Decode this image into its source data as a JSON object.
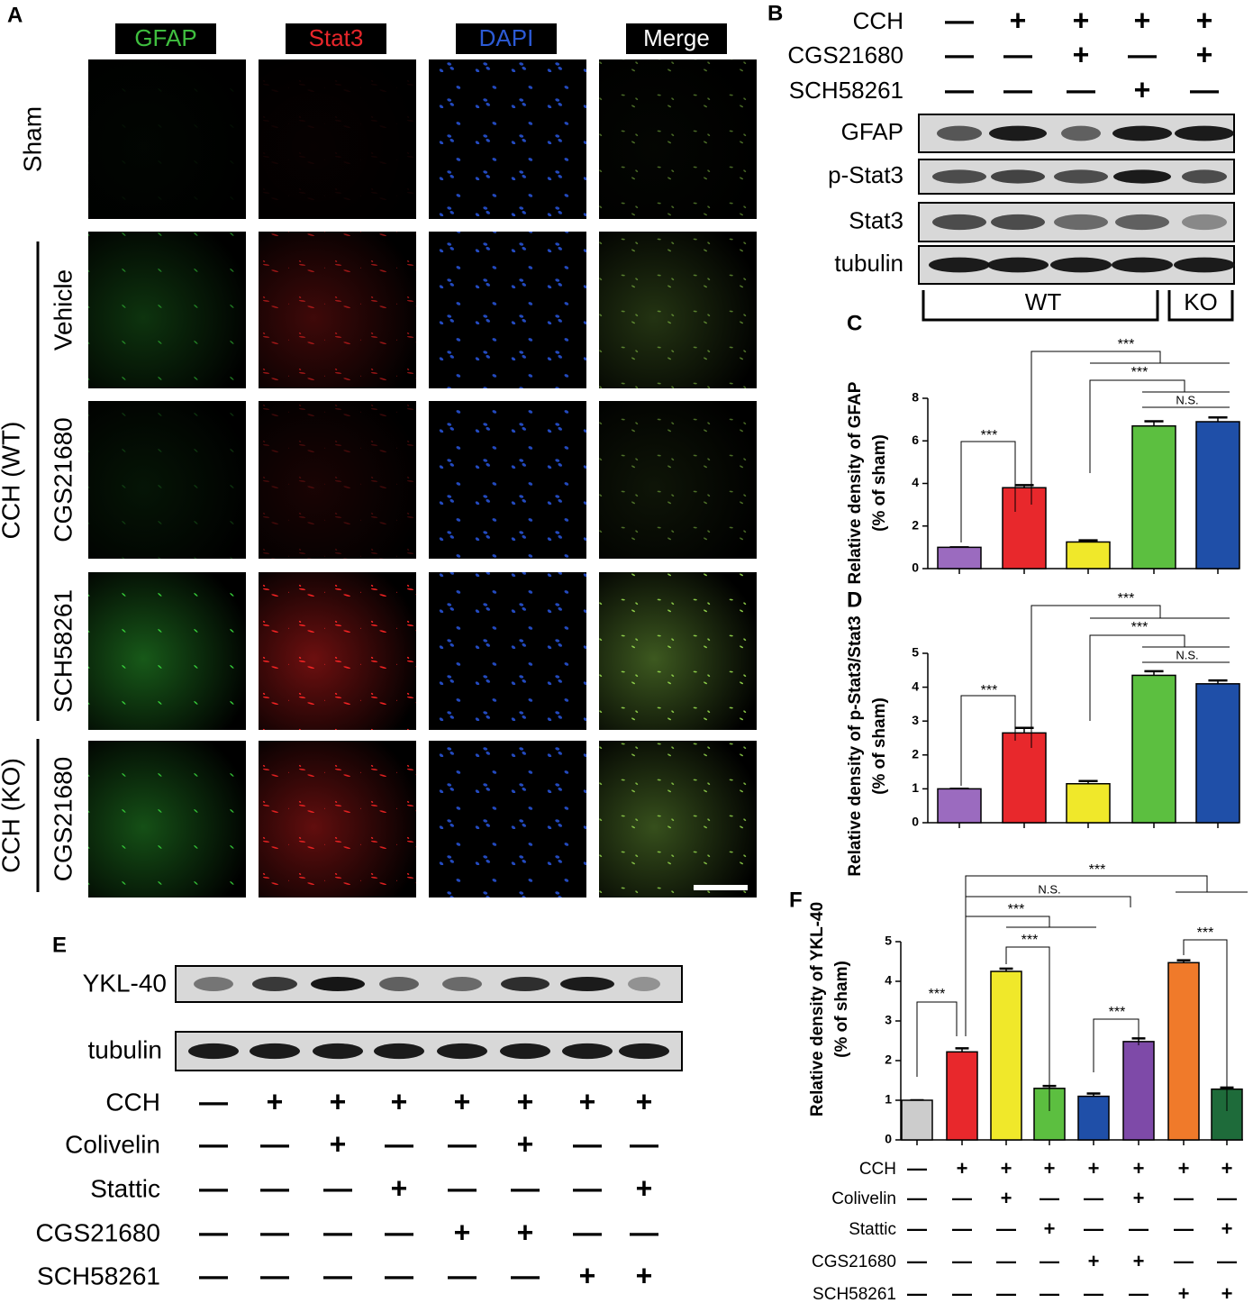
{
  "panel_a": {
    "label": "A",
    "channels": [
      "GFAP",
      "Stat3",
      "DAPI",
      "Merge"
    ],
    "rows": [
      "Sham",
      "Vehicle",
      "CGS21680",
      "SCH58261",
      "CGS21680"
    ],
    "groups": [
      "CCH (WT)",
      "CCH (KO)"
    ]
  },
  "panel_b": {
    "label": "B",
    "conditions": [
      {
        "name": "CCH",
        "signs": [
          "—",
          "+",
          "+",
          "+",
          "+"
        ]
      },
      {
        "name": "CGS21680",
        "signs": [
          "—",
          "—",
          "+",
          "—",
          "+"
        ]
      },
      {
        "name": "SCH58261",
        "signs": [
          "—",
          "—",
          "—",
          "+",
          "—"
        ]
      }
    ],
    "blots": [
      "GFAP",
      "p-Stat3",
      "Stat3",
      "tubulin"
    ],
    "genotypes": [
      "WT",
      "KO"
    ]
  },
  "panel_e": {
    "label": "E",
    "blots": [
      "YKL-40",
      "tubulin"
    ],
    "conditions": [
      {
        "name": "CCH",
        "signs": [
          "—",
          "+",
          "+",
          "+",
          "+",
          "+",
          "+",
          "+"
        ]
      },
      {
        "name": "Colivelin",
        "signs": [
          "—",
          "—",
          "+",
          "—",
          "—",
          "+",
          "—",
          "—"
        ]
      },
      {
        "name": "Stattic",
        "signs": [
          "—",
          "—",
          "—",
          "+",
          "—",
          "—",
          "—",
          "+"
        ]
      },
      {
        "name": "CGS21680",
        "signs": [
          "—",
          "—",
          "—",
          "—",
          "+",
          "+",
          "—",
          "—"
        ]
      },
      {
        "name": "SCH58261",
        "signs": [
          "—",
          "—",
          "—",
          "—",
          "—",
          "—",
          "+",
          "+"
        ]
      }
    ]
  },
  "chart_data": [
    {
      "type": "bar",
      "panel_label": "C",
      "ylabel": [
        "Relative density of GFAP",
        "(% of sham)"
      ],
      "categories": [
        null,
        null,
        null,
        null,
        null
      ],
      "values": [
        1.0,
        3.8,
        1.25,
        6.7,
        6.9
      ],
      "errors": [
        0,
        0.12,
        0.08,
        0.22,
        0.2
      ],
      "colors": [
        "#9b6bbf",
        "#e8282c",
        "#f0e82a",
        "#5cbf40",
        "#1f4fa8"
      ],
      "ylim": [
        0,
        8
      ],
      "yticks": [
        0,
        2,
        4,
        6,
        8
      ],
      "annotations": [
        "***",
        "***",
        "***",
        "N.S."
      ]
    },
    {
      "type": "bar",
      "panel_label": "D",
      "ylabel": [
        "Relative density of p-Stat3/Stat3",
        "(% of sham)"
      ],
      "categories": [
        null,
        null,
        null,
        null,
        null
      ],
      "values": [
        1.0,
        2.65,
        1.15,
        4.35,
        4.1
      ],
      "errors": [
        0,
        0.15,
        0.08,
        0.12,
        0.1
      ],
      "colors": [
        "#9b6bbf",
        "#e8282c",
        "#f0e82a",
        "#5cbf40",
        "#1f4fa8"
      ],
      "ylim": [
        0,
        5
      ],
      "yticks": [
        0,
        1,
        2,
        3,
        4,
        5
      ],
      "annotations": [
        "***",
        "***",
        "***",
        "N.S."
      ]
    },
    {
      "type": "bar",
      "panel_label": "F",
      "ylabel": [
        "Relative density of YKL-40",
        "(% of sham)"
      ],
      "categories": [
        null,
        null,
        null,
        null,
        null,
        null,
        null,
        null
      ],
      "values": [
        1.0,
        2.22,
        4.25,
        1.3,
        1.1,
        2.48,
        4.47,
        1.28
      ],
      "errors": [
        0,
        0.09,
        0.07,
        0.06,
        0.07,
        0.08,
        0.06,
        0.04
      ],
      "colors": [
        "#cccccc",
        "#e8282c",
        "#f0e82a",
        "#5cbf40",
        "#1f4fa8",
        "#7e4aa8",
        "#f07a2a",
        "#1e6b3a"
      ],
      "ylim": [
        0,
        5
      ],
      "yticks": [
        0,
        1,
        2,
        3,
        4,
        5
      ],
      "annotations": [
        "***",
        "***",
        "***",
        "***",
        "***",
        "N.S.",
        "***"
      ],
      "conditions": [
        {
          "name": "CCH",
          "signs": [
            "—",
            "+",
            "+",
            "+",
            "+",
            "+",
            "+",
            "+"
          ]
        },
        {
          "name": "Colivelin",
          "signs": [
            "—",
            "—",
            "+",
            "—",
            "—",
            "+",
            "—",
            "—"
          ]
        },
        {
          "name": "Stattic",
          "signs": [
            "—",
            "—",
            "—",
            "+",
            "—",
            "—",
            "—",
            "+"
          ]
        },
        {
          "name": "CGS21680",
          "signs": [
            "—",
            "—",
            "—",
            "—",
            "+",
            "+",
            "—",
            "—"
          ]
        },
        {
          "name": "SCH58261",
          "signs": [
            "—",
            "—",
            "—",
            "—",
            "—",
            "—",
            "+",
            "+"
          ]
        }
      ]
    }
  ]
}
